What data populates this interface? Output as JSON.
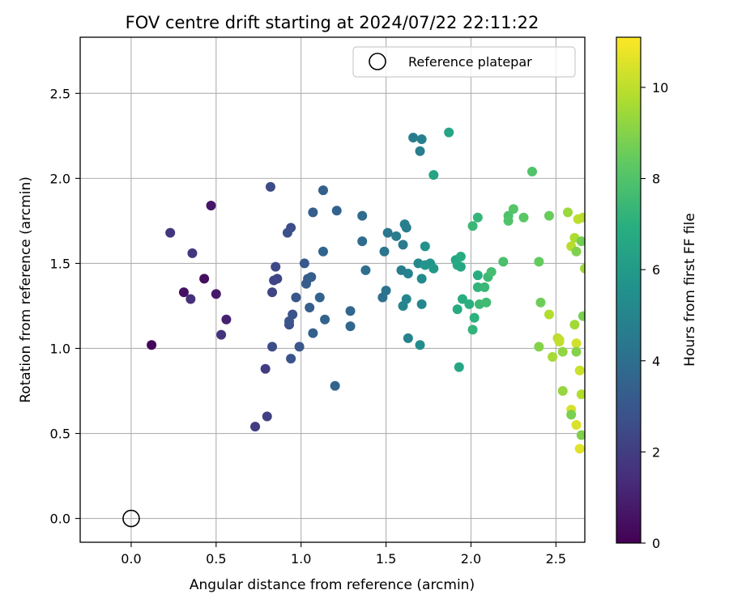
{
  "chart_data": {
    "type": "scatter",
    "title": "FOV centre drift starting at 2024/07/22 22:11:22",
    "xlabel": "Angular distance from reference (arcmin)",
    "ylabel": "Rotation from reference (arcmin)",
    "xlim": [
      -0.3,
      2.67
    ],
    "ylim": [
      -0.14,
      2.83
    ],
    "xticks": [
      0.0,
      0.5,
      1.0,
      1.5,
      2.0,
      2.5
    ],
    "yticks": [
      0.0,
      0.5,
      1.0,
      1.5,
      2.0,
      2.5
    ],
    "xtick_labels": [
      "0.0",
      "0.5",
      "1.0",
      "1.5",
      "2.0",
      "2.5"
    ],
    "ytick_labels": [
      "0.0",
      "0.5",
      "1.0",
      "1.5",
      "2.0",
      "2.5"
    ],
    "grid": true,
    "legend": {
      "position": "top-right",
      "entries": [
        "Reference platepar"
      ]
    },
    "reference_point": {
      "x": 0.0,
      "y": 0.0,
      "name": "Reference platepar"
    },
    "colorbar": {
      "label": "Hours from first FF file",
      "colormap": "viridis",
      "range": [
        0,
        11.1
      ],
      "ticks": [
        0,
        2,
        4,
        6,
        8,
        10
      ],
      "tick_labels": [
        "0",
        "2",
        "4",
        "6",
        "8",
        "10"
      ]
    },
    "points": [
      [
        0.12,
        1.02,
        0.2
      ],
      [
        0.31,
        1.33,
        0.5
      ],
      [
        0.43,
        1.41,
        0.4
      ],
      [
        0.47,
        1.84,
        0.7
      ],
      [
        0.5,
        1.32,
        0.8
      ],
      [
        0.56,
        1.17,
        1.0
      ],
      [
        0.35,
        1.29,
        1.5
      ],
      [
        0.23,
        1.68,
        1.7
      ],
      [
        0.36,
        1.56,
        1.8
      ],
      [
        0.53,
        1.08,
        1.6
      ],
      [
        0.73,
        0.54,
        2.0
      ],
      [
        0.8,
        0.6,
        2.1
      ],
      [
        0.79,
        0.88,
        2.0
      ],
      [
        0.83,
        1.33,
        2.2
      ],
      [
        0.84,
        1.4,
        2.3
      ],
      [
        0.85,
        1.48,
        2.4
      ],
      [
        0.86,
        1.41,
        2.3
      ],
      [
        0.82,
        1.95,
        2.5
      ],
      [
        0.83,
        1.01,
        2.6
      ],
      [
        0.93,
        1.14,
        2.7
      ],
      [
        0.94,
        1.71,
        2.6
      ],
      [
        0.92,
        1.68,
        2.7
      ],
      [
        0.95,
        1.2,
        2.8
      ],
      [
        0.97,
        1.3,
        3.0
      ],
      [
        0.93,
        1.16,
        2.9
      ],
      [
        0.94,
        0.94,
        2.9
      ],
      [
        0.99,
        1.01,
        3.0
      ],
      [
        1.02,
        1.5,
        3.1
      ],
      [
        1.03,
        1.38,
        3.2
      ],
      [
        1.04,
        1.41,
        3.2
      ],
      [
        1.06,
        1.42,
        3.3
      ],
      [
        1.05,
        1.24,
        3.3
      ],
      [
        1.07,
        1.8,
        3.3
      ],
      [
        1.07,
        1.09,
        3.4
      ],
      [
        1.11,
        1.3,
        3.5
      ],
      [
        1.13,
        1.93,
        3.4
      ],
      [
        1.13,
        1.57,
        3.6
      ],
      [
        1.14,
        1.17,
        3.5
      ],
      [
        1.2,
        0.78,
        3.6
      ],
      [
        1.21,
        1.81,
        3.5
      ],
      [
        1.29,
        1.22,
        3.7
      ],
      [
        1.29,
        1.13,
        3.7
      ],
      [
        1.36,
        1.78,
        3.9
      ],
      [
        1.36,
        1.63,
        3.9
      ],
      [
        1.38,
        1.46,
        4.0
      ],
      [
        1.48,
        1.3,
        4.1
      ],
      [
        1.49,
        1.57,
        4.3
      ],
      [
        1.5,
        1.34,
        4.2
      ],
      [
        1.51,
        1.68,
        4.4
      ],
      [
        1.56,
        1.66,
        4.6
      ],
      [
        1.59,
        1.46,
        4.7
      ],
      [
        1.6,
        1.61,
        4.6
      ],
      [
        1.61,
        1.73,
        4.8
      ],
      [
        1.62,
        1.71,
        4.7
      ],
      [
        1.63,
        1.44,
        4.9
      ],
      [
        1.6,
        1.25,
        5.0
      ],
      [
        1.62,
        1.29,
        5.1
      ],
      [
        1.63,
        1.06,
        4.9
      ],
      [
        1.66,
        2.24,
        4.6
      ],
      [
        1.7,
        2.16,
        4.7
      ],
      [
        1.71,
        2.23,
        4.8
      ],
      [
        1.69,
        1.5,
        5.2
      ],
      [
        1.71,
        1.41,
        5.3
      ],
      [
        1.71,
        1.26,
        5.1
      ],
      [
        1.7,
        1.02,
        5.4
      ],
      [
        1.73,
        1.6,
        5.6
      ],
      [
        1.73,
        1.49,
        5.8
      ],
      [
        1.76,
        1.5,
        5.7
      ],
      [
        1.78,
        1.47,
        5.9
      ],
      [
        1.78,
        2.02,
        6.4
      ],
      [
        1.87,
        2.27,
        6.5
      ],
      [
        1.91,
        1.52,
        6.6
      ],
      [
        1.92,
        1.49,
        6.7
      ],
      [
        1.94,
        1.48,
        6.6
      ],
      [
        1.94,
        1.54,
        6.8
      ],
      [
        1.92,
        1.23,
        6.8
      ],
      [
        1.95,
        1.29,
        6.9
      ],
      [
        1.99,
        1.26,
        7.0
      ],
      [
        1.93,
        0.89,
        6.6
      ],
      [
        2.01,
        1.11,
        7.2
      ],
      [
        2.02,
        1.18,
        7.1
      ],
      [
        2.01,
        1.72,
        7.4
      ],
      [
        2.04,
        1.77,
        7.3
      ],
      [
        2.04,
        1.43,
        6.9
      ],
      [
        2.04,
        1.36,
        7.2
      ],
      [
        2.05,
        1.26,
        7.5
      ],
      [
        2.08,
        1.36,
        7.4
      ],
      [
        2.09,
        1.27,
        7.6
      ],
      [
        2.1,
        1.42,
        7.5
      ],
      [
        2.12,
        1.45,
        7.7
      ],
      [
        2.19,
        1.51,
        7.8
      ],
      [
        2.22,
        1.78,
        7.9
      ],
      [
        2.22,
        1.75,
        8.0
      ],
      [
        2.25,
        1.82,
        8.1
      ],
      [
        2.31,
        1.77,
        8.2
      ],
      [
        2.36,
        2.04,
        8.0
      ],
      [
        2.4,
        1.51,
        8.4
      ],
      [
        2.41,
        1.27,
        8.6
      ],
      [
        2.4,
        1.01,
        9.0
      ],
      [
        2.46,
        1.78,
        8.5
      ],
      [
        2.46,
        1.2,
        9.8
      ],
      [
        2.48,
        0.95,
        9.6
      ],
      [
        2.51,
        1.06,
        9.9
      ],
      [
        2.52,
        1.05,
        10.0
      ],
      [
        2.52,
        1.04,
        10.1
      ],
      [
        2.54,
        0.98,
        9.2
      ],
      [
        2.54,
        0.75,
        9.3
      ],
      [
        2.57,
        1.8,
        9.4
      ],
      [
        2.59,
        1.6,
        9.9
      ],
      [
        2.59,
        0.64,
        10.4
      ],
      [
        2.59,
        0.61,
        8.8
      ],
      [
        2.61,
        1.65,
        9.7
      ],
      [
        2.61,
        1.14,
        9.5
      ],
      [
        2.62,
        1.57,
        8.9
      ],
      [
        2.62,
        1.03,
        10.3
      ],
      [
        2.62,
        0.98,
        9.0
      ],
      [
        2.62,
        0.55,
        10.5
      ],
      [
        2.63,
        1.76,
        10.0
      ],
      [
        2.64,
        0.87,
        10.2
      ],
      [
        2.64,
        0.41,
        10.6
      ],
      [
        2.65,
        0.73,
        9.8
      ],
      [
        2.65,
        1.63,
        8.7
      ],
      [
        2.65,
        0.49,
        8.9
      ],
      [
        2.66,
        1.19,
        8.8
      ],
      [
        2.66,
        1.77,
        9.9
      ],
      [
        2.67,
        1.47,
        9.5
      ]
    ]
  }
}
